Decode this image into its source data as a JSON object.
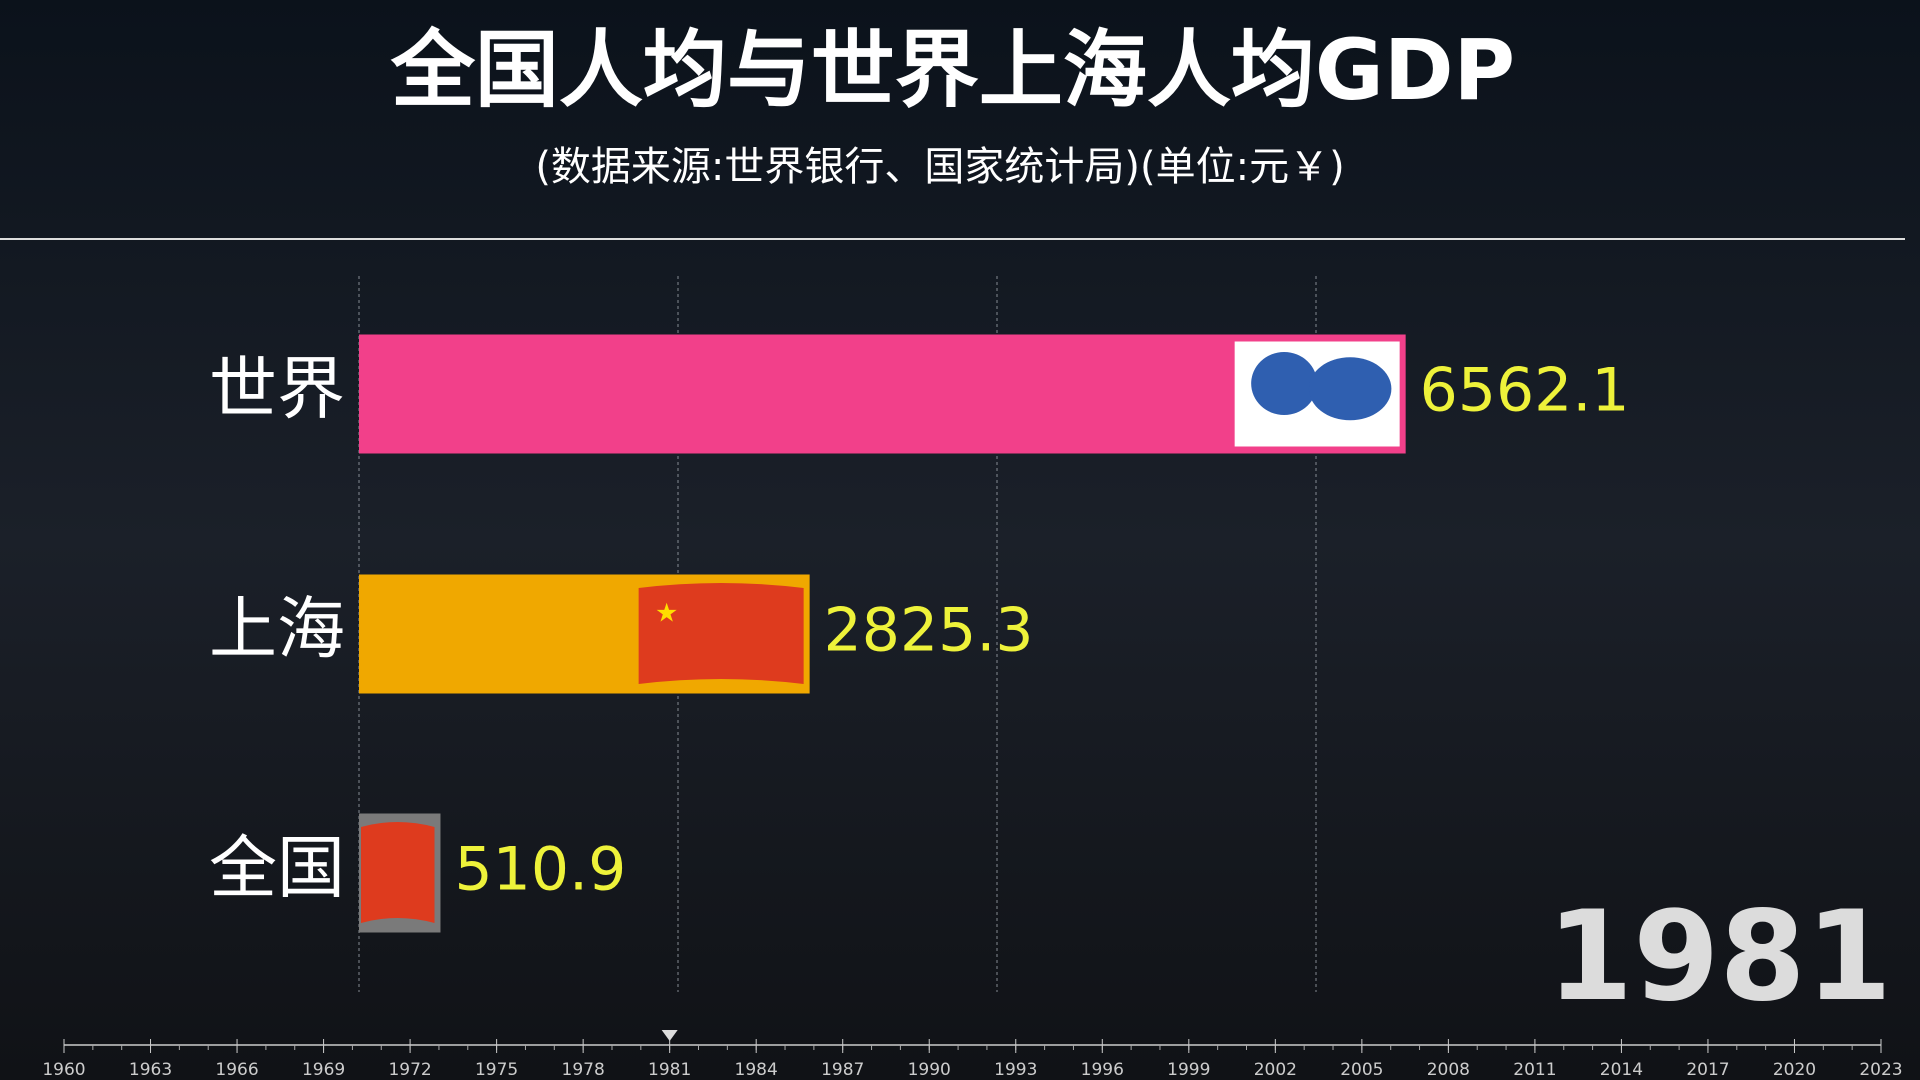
{
  "chart_data": {
    "type": "bar",
    "orientation": "horizontal",
    "title": "全国人均与世界上海人均GDP",
    "subtitle": "(数据来源:世界银行、国家统计局)(单位:元￥)",
    "categories": [
      "世界",
      "上海",
      "全国"
    ],
    "values": [
      6562.1,
      2825.3,
      510.9
    ],
    "colors": [
      "#f2408a",
      "#f0a800",
      "#7a7a7a"
    ],
    "xlim": [
      0,
      8000
    ],
    "xticks": [
      0,
      2000,
      4000,
      6000
    ],
    "grid": true,
    "year": 1981,
    "timeline": {
      "xlim": [
        1960,
        2023
      ],
      "ticks": [
        1960,
        1963,
        1966,
        1969,
        1972,
        1975,
        1978,
        1981,
        1984,
        1987,
        1990,
        1993,
        1996,
        1999,
        2002,
        2005,
        2008,
        2011,
        2014,
        2017,
        2020,
        2023
      ]
    }
  }
}
